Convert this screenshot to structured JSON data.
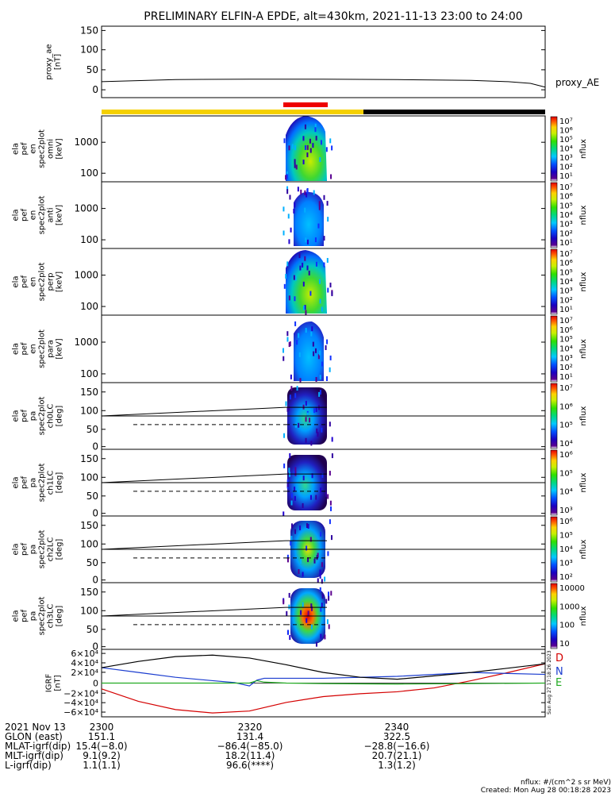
{
  "title": "PRELIMINARY ELFIN-A EPDE, alt=430km, 2021-11-13 23:00 to 24:00",
  "colors": {
    "yellow_bar": "#f5d000",
    "black_bar": "#000000",
    "red_bar": "#ee0000",
    "gei_D": "#d40000",
    "gei_N": "#1a3ccf",
    "gei_E": "#22aa22",
    "ae_line": "#000000"
  },
  "panels": [
    {
      "label_lines": [
        "proxy_ae",
        "[nT]"
      ],
      "right_label": "proxy_AE",
      "yticks": [
        "150",
        "100",
        "50",
        "0"
      ]
    },
    {
      "label_lines": [
        "ela",
        "pef",
        "en",
        "spec2plot",
        "omni",
        "[keV]"
      ],
      "yticks": [
        "1000",
        "100"
      ],
      "cbar_ticks": [
        "10⁷",
        "10⁶",
        "10⁵",
        "10⁴",
        "10³",
        "10²",
        "10¹"
      ],
      "cbar_unit": "nflux"
    },
    {
      "label_lines": [
        "ela",
        "pef",
        "en",
        "spec2plot",
        "anti",
        "[keV]"
      ],
      "yticks": [
        "1000",
        "100"
      ],
      "cbar_ticks": [
        "10⁷",
        "10⁶",
        "10⁵",
        "10⁴",
        "10³",
        "10²",
        "10¹"
      ],
      "cbar_unit": "nflux"
    },
    {
      "label_lines": [
        "ela",
        "pef",
        "en",
        "spec2plot",
        "perp",
        "[keV]"
      ],
      "yticks": [
        "1000",
        "100"
      ],
      "cbar_ticks": [
        "10⁷",
        "10⁶",
        "10⁵",
        "10⁴",
        "10³",
        "10²",
        "10¹"
      ],
      "cbar_unit": "nflux"
    },
    {
      "label_lines": [
        "ela",
        "pef",
        "en",
        "spec2plot",
        "para",
        "[keV]"
      ],
      "yticks": [
        "1000",
        "100"
      ],
      "cbar_ticks": [
        "10⁷",
        "10⁶",
        "10⁵",
        "10⁴",
        "10³",
        "10²",
        "10¹"
      ],
      "cbar_unit": "nflux"
    },
    {
      "label_lines": [
        "ela",
        "pef",
        "pa",
        "spec2plot",
        "ch0LC",
        "[deg]"
      ],
      "yticks": [
        "150",
        "100",
        "50",
        "0"
      ],
      "cbar_ticks": [
        "10⁷",
        "10⁶",
        "10⁵",
        "10⁴"
      ],
      "cbar_unit": "nflux"
    },
    {
      "label_lines": [
        "ela",
        "pef",
        "pa",
        "spec2plot",
        "ch1LC",
        "[deg]"
      ],
      "yticks": [
        "150",
        "100",
        "50",
        "0"
      ],
      "cbar_ticks": [
        "10⁶",
        "10⁵",
        "10⁴",
        "10³"
      ],
      "cbar_unit": "nflux"
    },
    {
      "label_lines": [
        "ela",
        "pef",
        "pa",
        "spec2plot",
        "ch2LC",
        "[deg]"
      ],
      "yticks": [
        "150",
        "100",
        "50",
        "0"
      ],
      "cbar_ticks": [
        "10⁶",
        "10⁵",
        "10⁴",
        "10³",
        "10²"
      ],
      "cbar_unit": "nflux"
    },
    {
      "label_lines": [
        "ela",
        "pef",
        "pa",
        "spec2plot",
        "ch3LC",
        "[deg]"
      ],
      "yticks": [
        "150",
        "100",
        "50",
        "0"
      ],
      "cbar_ticks": [
        "10000",
        "1000",
        "100",
        "10"
      ],
      "cbar_unit": "nflux"
    },
    {
      "label_lines": [
        "IGRF",
        "[nT]"
      ],
      "yticks": [
        "6×10⁴",
        "4×10⁴",
        "2×10⁴",
        "0",
        "−2×10⁴",
        "−4×10⁴",
        "−6×10⁴"
      ],
      "side_labels": [
        "D",
        "N",
        "E"
      ],
      "stamp": "Sun Aug 27 17:18:26 2023"
    }
  ],
  "footer": {
    "rows": [
      {
        "label": "2021 Nov 13",
        "values": [
          "2300",
          "2320",
          "2340"
        ]
      },
      {
        "label": "GLON (east)",
        "values": [
          "151.1",
          "131.4",
          "322.5"
        ]
      },
      {
        "label": "MLAT-igrf(dip)",
        "values": [
          "15.4(−8.0)",
          "−86.4(−85.0)",
          "−28.8(−16.6)"
        ]
      },
      {
        "label": "MLT-igrf(dip)",
        "values": [
          "9.1(9.2)",
          "18.2(11.4)",
          "20.7(21.1)"
        ]
      },
      {
        "label": "L-igrf(dip)",
        "values": [
          "1.1(1.1)",
          "96.6(****)",
          "1.3(1.2)"
        ]
      }
    ],
    "units_note": "nflux: #/(cm^2 s sr MeV)",
    "created": "Created: Mon Aug 28 00:18:28 2023"
  },
  "chart_data": [
    {
      "type": "line",
      "name_printed": "proxy_AE",
      "x_unit": "UT minutes after 23:00",
      "x": [
        0,
        10,
        20,
        30,
        40,
        50,
        55,
        58,
        60
      ],
      "y": [
        28,
        33,
        34,
        34,
        33,
        31,
        28,
        24,
        15
      ],
      "ylim": [
        -10,
        160
      ]
    },
    {
      "type": "heatmap",
      "note": "electron energy spectrogram (omni)",
      "x_range": [
        24,
        30
      ],
      "y_range_keV": [
        60,
        7000
      ],
      "clim": [
        10,
        10000000.0
      ],
      "scale": "log"
    },
    {
      "type": "heatmap",
      "note": "anti",
      "x_range": [
        24,
        30
      ],
      "clim": [
        10,
        10000000.0
      ]
    },
    {
      "type": "heatmap",
      "note": "perp",
      "x_range": [
        24,
        30
      ],
      "clim": [
        10,
        10000000.0
      ]
    },
    {
      "type": "heatmap",
      "note": "para",
      "x_range": [
        24,
        30
      ],
      "clim": [
        10,
        10000000.0
      ]
    },
    {
      "type": "heatmap",
      "note": "ch0LC pitch angle",
      "x_range": [
        24,
        30
      ],
      "y_range_deg": [
        0,
        180
      ]
    },
    {
      "type": "heatmap",
      "note": "ch1LC pitch angle",
      "x_range": [
        24,
        30
      ],
      "y_range_deg": [
        0,
        180
      ]
    },
    {
      "type": "heatmap",
      "note": "ch2LC pitch angle",
      "x_range": [
        24,
        30
      ],
      "y_range_deg": [
        0,
        180
      ]
    },
    {
      "type": "heatmap",
      "note": "ch3LC pitch angle",
      "x_range": [
        24,
        30
      ],
      "y_range_deg": [
        0,
        180
      ]
    },
    {
      "type": "line",
      "x_unit": "UT minutes after 23:00",
      "ylim": [
        -70000,
        70000
      ],
      "series": [
        {
          "name": "D",
          "x": [
            0,
            5,
            10,
            15,
            20,
            25,
            30,
            35,
            40,
            45,
            50,
            55,
            60
          ],
          "y": [
            -12000,
            -38000,
            -55000,
            -62000,
            -58000,
            -40000,
            -28000,
            -22000,
            -18000,
            -10000,
            5000,
            22000,
            40000
          ]
        },
        {
          "name": "N",
          "x": [
            0,
            5,
            10,
            15,
            18,
            20,
            21,
            22,
            25,
            30,
            40,
            50,
            60
          ],
          "y": [
            32000,
            22000,
            12000,
            5000,
            1000,
            -6000,
            6000,
            10000,
            10000,
            10000,
            14000,
            22000,
            18000
          ]
        },
        {
          "name": "E",
          "x": [
            0,
            10,
            20,
            21,
            22,
            25,
            30,
            40,
            50,
            60
          ],
          "y": [
            0,
            0,
            0,
            5000,
            2000,
            0,
            -1000,
            -2000,
            -1000,
            0
          ]
        },
        {
          "name": "",
          "x": [
            0,
            5,
            10,
            15,
            20,
            25,
            30,
            35,
            40,
            50,
            60
          ],
          "y": [
            32000,
            45000,
            55000,
            58000,
            52000,
            38000,
            22000,
            12000,
            8000,
            22000,
            40000
          ]
        }
      ]
    }
  ]
}
